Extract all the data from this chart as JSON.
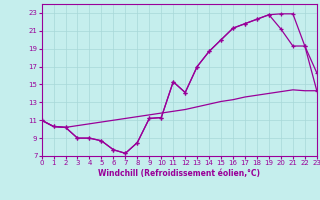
{
  "xlabel": "Windchill (Refroidissement éolien,°C)",
  "xlim": [
    0,
    23
  ],
  "ylim": [
    7,
    24
  ],
  "xticks": [
    0,
    1,
    2,
    3,
    4,
    5,
    6,
    7,
    8,
    9,
    10,
    11,
    12,
    13,
    14,
    15,
    16,
    17,
    18,
    19,
    20,
    21,
    22,
    23
  ],
  "yticks": [
    7,
    9,
    11,
    13,
    15,
    17,
    19,
    21,
    23
  ],
  "bg_color": "#c5eeed",
  "line_color": "#990099",
  "grid_color": "#a8d8d8",
  "line1_x": [
    0,
    1,
    2,
    3,
    4,
    5,
    6,
    7,
    8,
    9,
    10,
    11,
    12,
    13,
    14,
    15,
    16,
    17,
    18,
    19,
    20,
    21,
    22,
    23
  ],
  "line1_y": [
    11.0,
    10.3,
    10.2,
    9.0,
    9.0,
    8.7,
    7.7,
    7.3,
    8.5,
    11.2,
    11.3,
    15.3,
    14.1,
    17.0,
    18.7,
    20.0,
    21.3,
    21.8,
    22.3,
    22.8,
    22.9,
    22.9,
    19.3,
    16.3
  ],
  "line2_x": [
    0,
    1,
    2,
    3,
    4,
    5,
    6,
    7,
    8,
    9,
    10,
    11,
    12,
    13,
    14,
    15,
    16,
    17,
    18,
    19,
    20,
    21,
    22,
    23
  ],
  "line2_y": [
    11.0,
    10.3,
    10.2,
    9.0,
    9.0,
    8.7,
    7.7,
    7.3,
    8.5,
    11.2,
    11.3,
    15.3,
    14.1,
    17.0,
    18.7,
    20.0,
    21.3,
    21.8,
    22.3,
    22.8,
    21.2,
    19.3,
    19.3,
    14.3
  ],
  "line3_x": [
    0,
    1,
    2,
    3,
    4,
    5,
    6,
    7,
    8,
    9,
    10,
    11,
    12,
    13,
    14,
    15,
    16,
    17,
    18,
    19,
    20,
    21,
    22,
    23
  ],
  "line3_y": [
    11.0,
    10.3,
    10.2,
    10.4,
    10.6,
    10.8,
    11.0,
    11.2,
    11.4,
    11.6,
    11.8,
    12.0,
    12.2,
    12.5,
    12.8,
    13.1,
    13.3,
    13.6,
    13.8,
    14.0,
    14.2,
    14.4,
    14.3,
    14.3
  ]
}
